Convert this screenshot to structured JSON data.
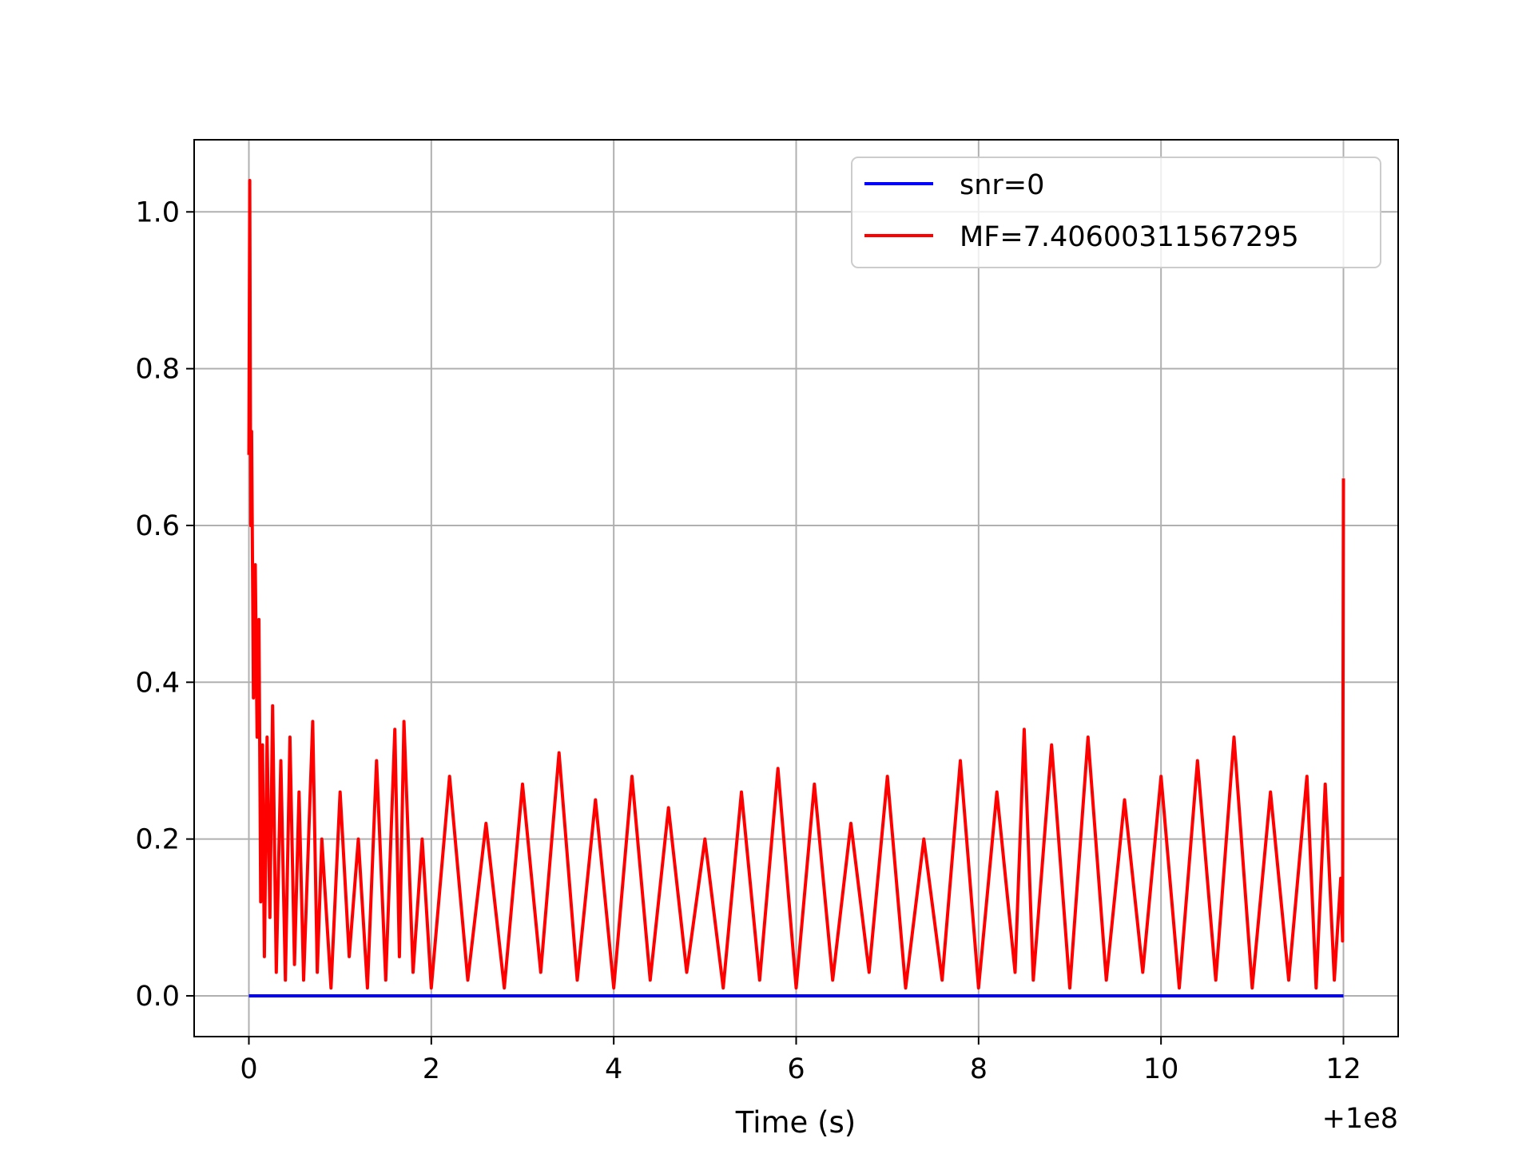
{
  "chart_data": {
    "type": "line",
    "title": "",
    "xlabel": "Time (s)",
    "ylabel": "",
    "x_offset_label": "+1e8",
    "xlim": [
      -0.6,
      12.6
    ],
    "ylim": [
      -0.052,
      1.092
    ],
    "x_ticks": [
      0,
      2,
      4,
      6,
      8,
      10,
      12
    ],
    "x_tick_labels": [
      "0",
      "2",
      "4",
      "6",
      "8",
      "10",
      "12"
    ],
    "y_ticks": [
      0.0,
      0.2,
      0.4,
      0.6,
      0.8,
      1.0
    ],
    "y_tick_labels": [
      "0.0",
      "0.2",
      "0.4",
      "0.6",
      "0.8",
      "1.0"
    ],
    "grid": true,
    "legend_position": "top-right",
    "series": [
      {
        "name": "snr=0",
        "color": "#0000ff",
        "x": [
          0,
          12
        ],
        "y": [
          0.0,
          0.0
        ]
      },
      {
        "name": "MF=7.40600311567295",
        "color": "#ff0000",
        "x": [
          0.0,
          0.01,
          0.02,
          0.03,
          0.05,
          0.07,
          0.09,
          0.11,
          0.13,
          0.15,
          0.17,
          0.2,
          0.23,
          0.26,
          0.3,
          0.35,
          0.4,
          0.45,
          0.5,
          0.55,
          0.6,
          0.7,
          0.75,
          0.8,
          0.9,
          1.0,
          1.1,
          1.2,
          1.3,
          1.4,
          1.5,
          1.6,
          1.65,
          1.7,
          1.8,
          1.9,
          2.0,
          2.2,
          2.4,
          2.6,
          2.8,
          3.0,
          3.2,
          3.4,
          3.6,
          3.8,
          4.0,
          4.2,
          4.4,
          4.6,
          4.8,
          5.0,
          5.2,
          5.4,
          5.6,
          5.8,
          6.0,
          6.2,
          6.4,
          6.6,
          6.8,
          7.0,
          7.2,
          7.4,
          7.6,
          7.8,
          8.0,
          8.2,
          8.4,
          8.5,
          8.6,
          8.8,
          9.0,
          9.2,
          9.4,
          9.6,
          9.8,
          10.0,
          10.2,
          10.4,
          10.6,
          10.8,
          11.0,
          11.2,
          11.4,
          11.6,
          11.7,
          11.8,
          11.9,
          11.97,
          11.99,
          12.0
        ],
        "y": [
          0.69,
          1.04,
          0.6,
          0.72,
          0.38,
          0.55,
          0.33,
          0.48,
          0.12,
          0.32,
          0.05,
          0.33,
          0.1,
          0.37,
          0.03,
          0.3,
          0.02,
          0.33,
          0.04,
          0.26,
          0.02,
          0.35,
          0.03,
          0.2,
          0.01,
          0.26,
          0.05,
          0.2,
          0.01,
          0.3,
          0.02,
          0.34,
          0.05,
          0.35,
          0.03,
          0.2,
          0.01,
          0.28,
          0.02,
          0.22,
          0.01,
          0.27,
          0.03,
          0.31,
          0.02,
          0.25,
          0.01,
          0.28,
          0.02,
          0.24,
          0.03,
          0.2,
          0.01,
          0.26,
          0.02,
          0.29,
          0.01,
          0.27,
          0.02,
          0.22,
          0.03,
          0.28,
          0.01,
          0.2,
          0.02,
          0.3,
          0.01,
          0.26,
          0.03,
          0.34,
          0.02,
          0.32,
          0.01,
          0.33,
          0.02,
          0.25,
          0.03,
          0.28,
          0.01,
          0.3,
          0.02,
          0.33,
          0.01,
          0.26,
          0.02,
          0.28,
          0.01,
          0.27,
          0.02,
          0.15,
          0.07,
          0.66
        ]
      }
    ]
  }
}
